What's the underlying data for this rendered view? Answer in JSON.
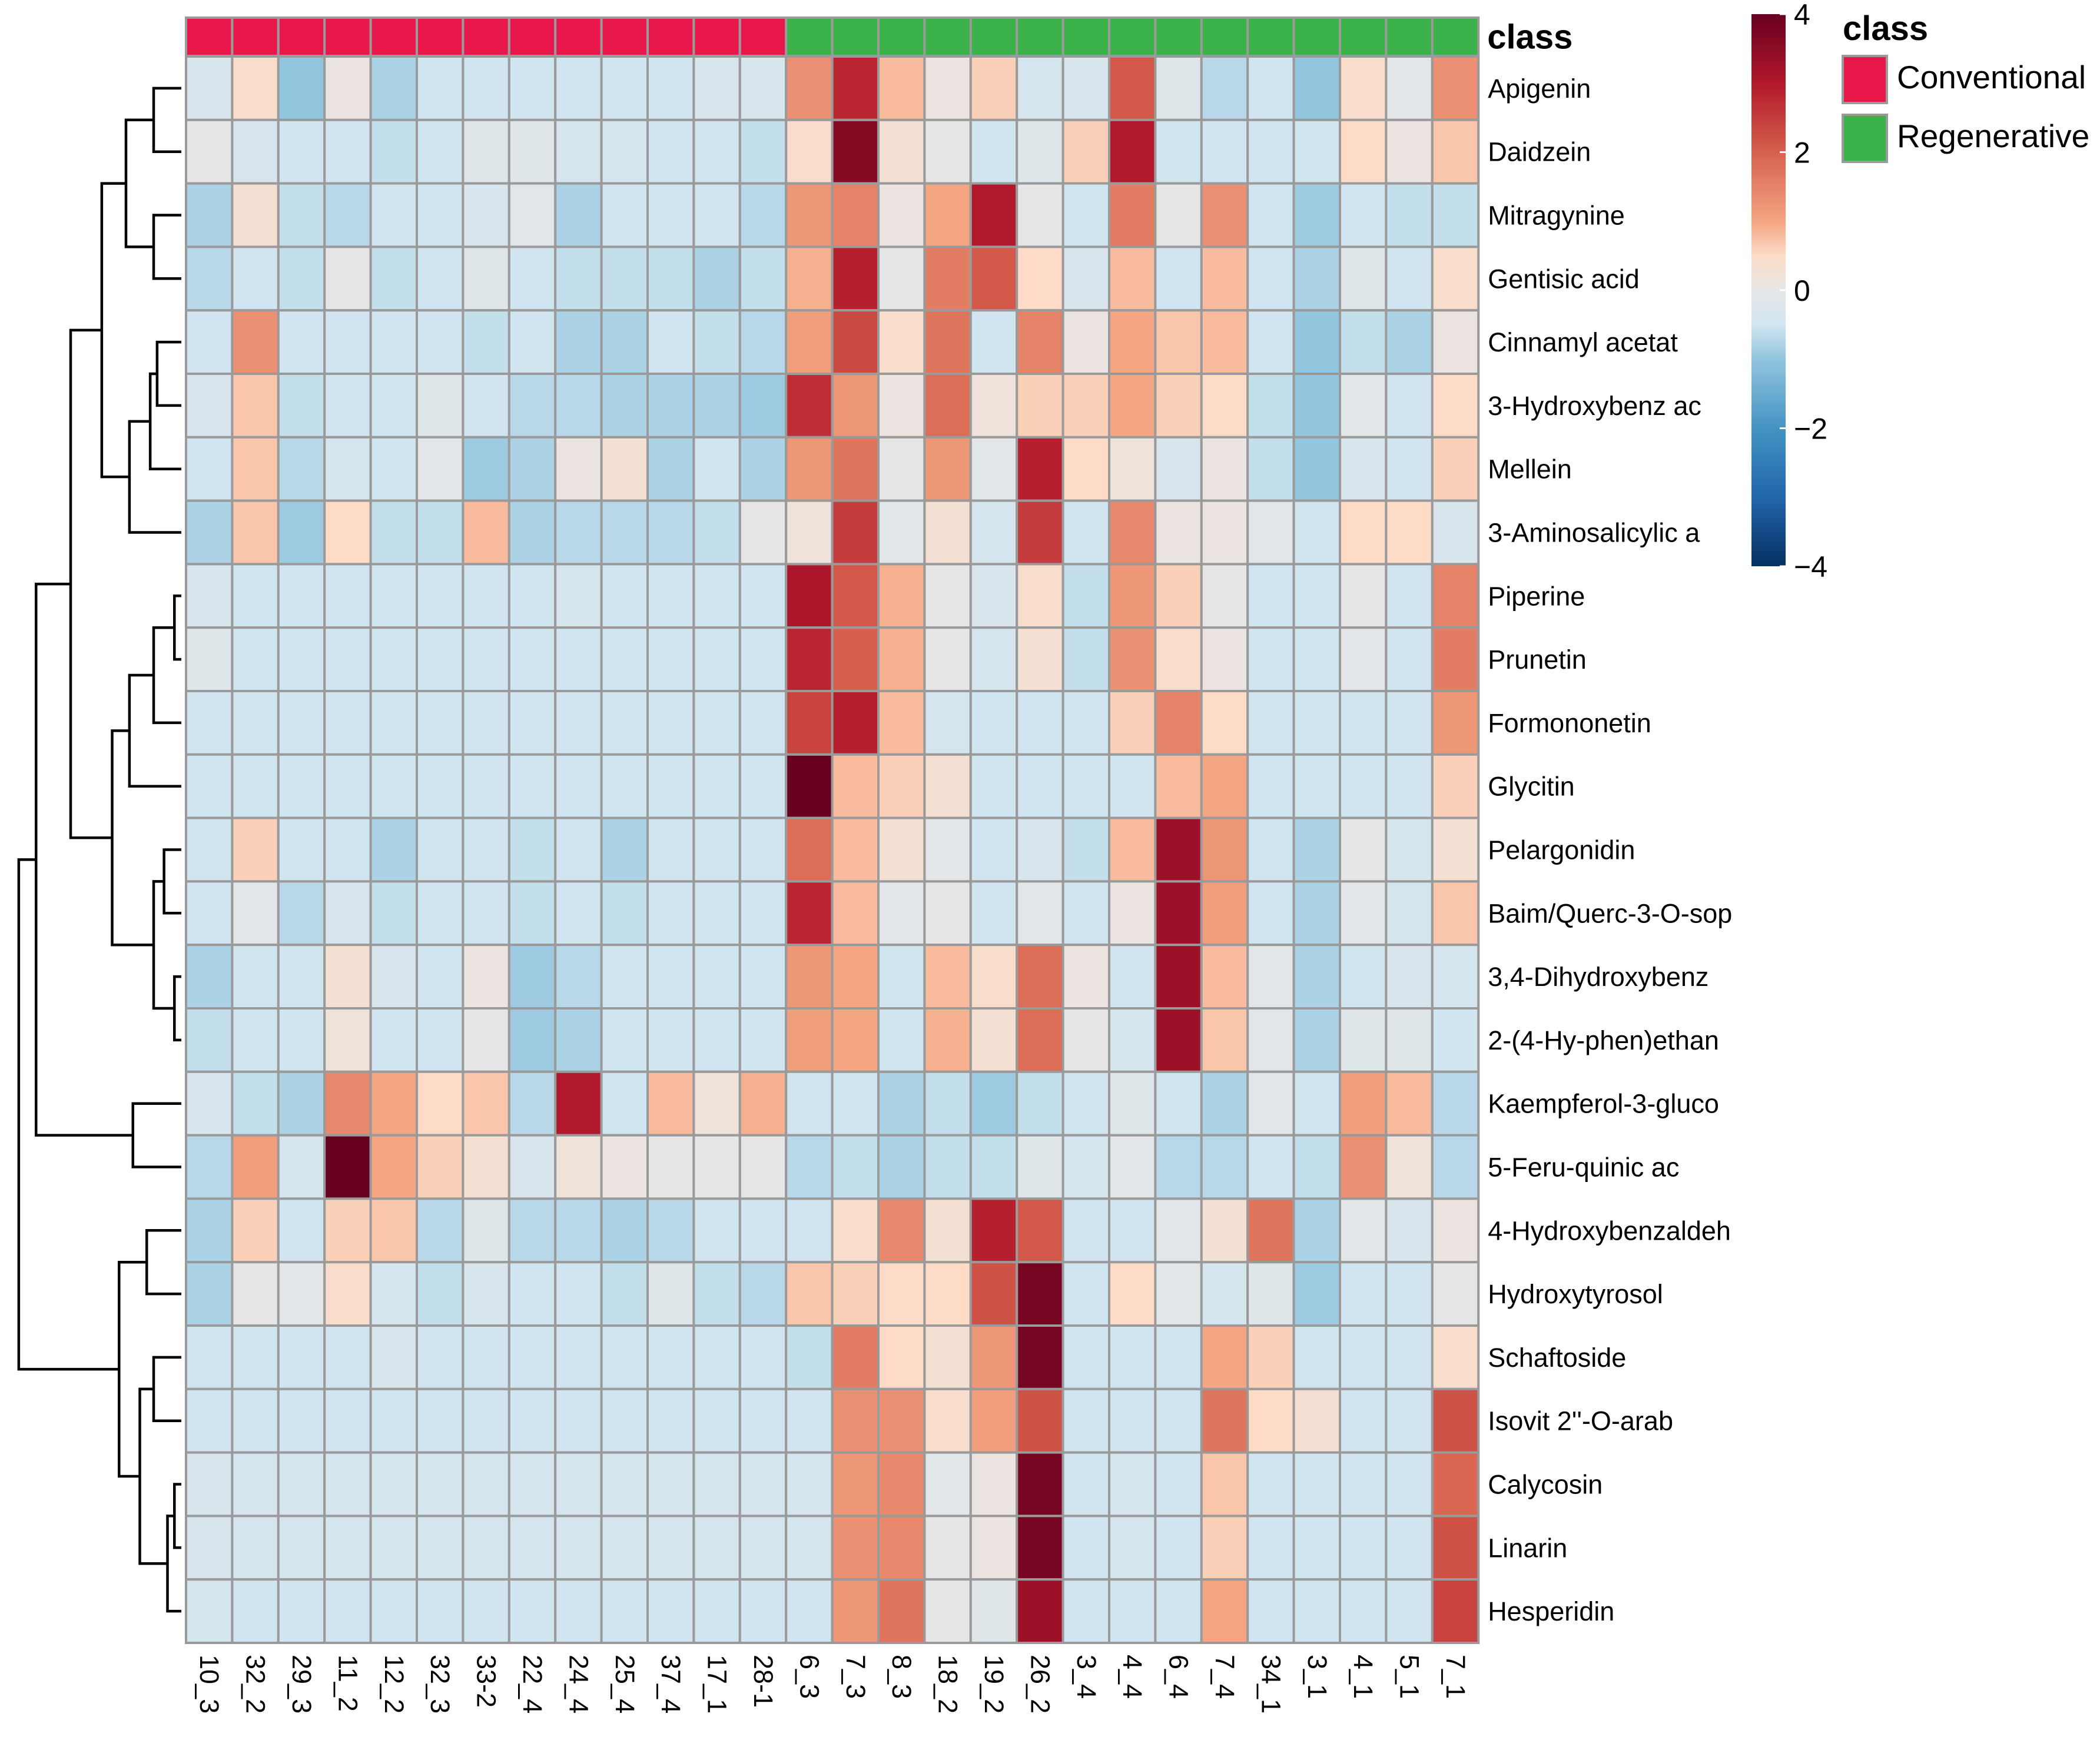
{
  "chart_data": {
    "type": "heatmap",
    "title": "",
    "annotation_title": "class",
    "legend": {
      "title": "class",
      "items": [
        {
          "label": "Conventional",
          "color": "#E8174B"
        },
        {
          "label": "Regenerative",
          "color": "#3BB14A"
        }
      ]
    },
    "color_scale": {
      "min": -4,
      "max": 4,
      "ticks": [
        "4",
        "2",
        "0",
        "−2",
        "−4"
      ],
      "tick_values": [
        4,
        2,
        0,
        -2,
        -4
      ],
      "stops": [
        {
          "value": -4,
          "color": "#053061"
        },
        {
          "value": -3,
          "color": "#2166AC"
        },
        {
          "value": -2,
          "color": "#4393C3"
        },
        {
          "value": -1,
          "color": "#92C5DE"
        },
        {
          "value": -0.5,
          "color": "#D1E5F0"
        },
        {
          "value": 0,
          "color": "#E6E6E6"
        },
        {
          "value": 0.5,
          "color": "#FDDBC7"
        },
        {
          "value": 1,
          "color": "#F4A582"
        },
        {
          "value": 2,
          "color": "#D6604D"
        },
        {
          "value": 3,
          "color": "#B2182B"
        },
        {
          "value": 4,
          "color": "#67001F"
        }
      ]
    },
    "columns": [
      "10_3",
      "32_2",
      "29_3",
      "11_2",
      "12_2",
      "32_3",
      "33-2",
      "22_4",
      "24_4",
      "25_4",
      "37_4",
      "17_1",
      "28-1",
      "6_3",
      "7_3",
      "8_3",
      "18_2",
      "19_2",
      "26_2",
      "3_4",
      "4_4",
      "6_4",
      "7_4",
      "34_1",
      "3_1",
      "4_1",
      "5_1",
      "7_1"
    ],
    "column_classes": [
      "Conventional",
      "Conventional",
      "Conventional",
      "Conventional",
      "Conventional",
      "Conventional",
      "Conventional",
      "Conventional",
      "Conventional",
      "Conventional",
      "Conventional",
      "Conventional",
      "Conventional",
      "Regenerative",
      "Regenerative",
      "Regenerative",
      "Regenerative",
      "Regenerative",
      "Regenerative",
      "Regenerative",
      "Regenerative",
      "Regenerative",
      "Regenerative",
      "Regenerative",
      "Regenerative",
      "Regenerative",
      "Regenerative",
      "Regenerative"
    ],
    "rows": [
      "Apigenin",
      "Daidzein",
      "Mitragynine",
      "Gentisic acid",
      "Cinnamyl acetat",
      "3-Hydroxybenz ac",
      "Mellein",
      "3-Aminosalicylic a",
      "Piperine",
      "Prunetin",
      "Formononetin",
      "Glycitin",
      "Pelargonidin",
      "Baim/Querc-3-O-sop",
      "3,4-Dihydroxybenz",
      "2-(4-Hy-phen)ethan",
      "Kaempferol-3-gluco",
      "5-Feru-quinic ac",
      "4-Hydroxybenzaldeh",
      "Hydroxytyrosol",
      "Schaftoside",
      "Isovit 2''-O-arab",
      "Calycosin",
      "Linarin",
      "Hesperidin"
    ],
    "values": [
      [
        -0.3,
        0.4,
        -1.0,
        0.1,
        -0.8,
        -0.5,
        -0.5,
        -0.5,
        -0.5,
        -0.5,
        -0.5,
        -0.3,
        -0.3,
        1.3,
        2.8,
        0.8,
        0.1,
        0.6,
        -0.4,
        -0.3,
        2.1,
        -0.2,
        -0.7,
        -0.5,
        -1.0,
        0.4,
        -0.1,
        1.3
      ],
      [
        0.0,
        -0.3,
        -0.5,
        -0.5,
        -0.6,
        -0.5,
        -0.2,
        -0.2,
        -0.4,
        -0.4,
        -0.5,
        -0.5,
        -0.6,
        0.4,
        3.6,
        0.3,
        0.0,
        -0.5,
        -0.2,
        0.6,
        3.0,
        -0.5,
        -0.5,
        -0.5,
        -0.5,
        0.5,
        0.1,
        0.7
      ],
      [
        -0.8,
        0.3,
        -0.6,
        -0.7,
        -0.5,
        -0.5,
        -0.3,
        -0.1,
        -0.8,
        -0.5,
        -0.5,
        -0.5,
        -0.7,
        1.2,
        1.5,
        0.1,
        1.0,
        3.0,
        0.0,
        -0.5,
        1.6,
        0.0,
        1.3,
        -0.5,
        -0.9,
        -0.5,
        -0.6,
        -0.6
      ],
      [
        -0.7,
        -0.5,
        -0.6,
        0.0,
        -0.6,
        -0.5,
        -0.2,
        -0.5,
        -0.6,
        -0.6,
        -0.6,
        -0.8,
        -0.6,
        0.9,
        2.9,
        0.0,
        1.6,
        2.1,
        0.5,
        -0.3,
        0.8,
        -0.5,
        0.8,
        -0.5,
        -0.8,
        -0.2,
        -0.5,
        0.4
      ],
      [
        -0.5,
        1.3,
        -0.5,
        -0.5,
        -0.5,
        -0.5,
        -0.6,
        -0.5,
        -0.8,
        -0.8,
        -0.5,
        -0.6,
        -0.7,
        1.1,
        2.3,
        0.4,
        1.7,
        -0.5,
        1.5,
        0.1,
        1.0,
        0.7,
        0.8,
        -0.5,
        -1.0,
        -0.6,
        -0.8,
        0.1
      ],
      [
        -0.3,
        0.7,
        -0.6,
        -0.5,
        -0.5,
        -0.2,
        -0.5,
        -0.7,
        -0.7,
        -0.8,
        -0.8,
        -0.8,
        -0.9,
        2.7,
        1.2,
        0.1,
        1.8,
        0.2,
        0.6,
        0.6,
        1.0,
        0.6,
        0.5,
        -0.6,
        -1.0,
        -0.1,
        -0.5,
        0.5
      ],
      [
        -0.5,
        0.7,
        -0.7,
        -0.4,
        -0.5,
        -0.1,
        -0.9,
        -0.8,
        0.1,
        0.3,
        -0.8,
        -0.5,
        -0.8,
        1.2,
        1.7,
        0.0,
        1.2,
        -0.1,
        2.9,
        0.5,
        0.2,
        -0.3,
        0.1,
        -0.6,
        -1.0,
        -0.3,
        -0.5,
        0.6
      ],
      [
        -0.8,
        0.7,
        -0.9,
        0.5,
        -0.6,
        -0.6,
        0.8,
        -0.8,
        -0.7,
        -0.7,
        -0.7,
        -0.6,
        0.0,
        0.2,
        2.5,
        -0.1,
        0.3,
        -0.4,
        2.5,
        -0.5,
        1.4,
        0.1,
        0.1,
        -0.1,
        -0.5,
        0.5,
        0.5,
        -0.3
      ],
      [
        -0.3,
        -0.5,
        -0.5,
        -0.5,
        -0.5,
        -0.5,
        -0.5,
        -0.5,
        -0.4,
        -0.5,
        -0.5,
        -0.5,
        -0.5,
        3.1,
        2.1,
        0.9,
        0.0,
        -0.3,
        0.4,
        -0.6,
        1.2,
        0.6,
        0.0,
        -0.5,
        -0.5,
        0.0,
        -0.5,
        1.5
      ],
      [
        -0.2,
        -0.5,
        -0.5,
        -0.5,
        -0.5,
        -0.5,
        -0.5,
        -0.5,
        -0.5,
        -0.5,
        -0.5,
        -0.5,
        -0.5,
        2.8,
        2.0,
        0.9,
        0.0,
        -0.4,
        0.3,
        -0.6,
        1.3,
        0.4,
        0.1,
        -0.5,
        -0.5,
        -0.1,
        -0.5,
        1.6
      ],
      [
        -0.5,
        -0.5,
        -0.5,
        -0.5,
        -0.5,
        -0.5,
        -0.5,
        -0.5,
        -0.5,
        -0.5,
        -0.5,
        -0.5,
        -0.5,
        2.4,
        2.9,
        0.8,
        -0.4,
        -0.5,
        -0.5,
        -0.5,
        0.6,
        1.5,
        0.5,
        -0.5,
        -0.5,
        -0.5,
        -0.5,
        1.2
      ],
      [
        -0.5,
        -0.5,
        -0.5,
        -0.5,
        -0.5,
        -0.5,
        -0.5,
        -0.5,
        -0.5,
        -0.5,
        -0.5,
        -0.5,
        -0.5,
        4.0,
        0.8,
        0.6,
        0.3,
        -0.5,
        -0.5,
        -0.5,
        -0.5,
        0.8,
        1.0,
        -0.5,
        -0.5,
        -0.5,
        -0.5,
        0.6
      ],
      [
        -0.5,
        0.6,
        -0.5,
        -0.5,
        -0.8,
        -0.5,
        -0.5,
        -0.6,
        -0.5,
        -0.8,
        -0.5,
        -0.5,
        -0.5,
        1.8,
        0.8,
        0.3,
        -0.1,
        -0.5,
        -0.3,
        -0.6,
        0.8,
        3.3,
        1.2,
        -0.5,
        -0.8,
        0.0,
        -0.4,
        0.3
      ],
      [
        -0.5,
        -0.1,
        -0.7,
        -0.3,
        -0.6,
        -0.5,
        -0.5,
        -0.6,
        -0.5,
        -0.6,
        -0.5,
        -0.5,
        -0.5,
        2.8,
        0.8,
        -0.1,
        0.0,
        -0.5,
        -0.1,
        -0.5,
        0.1,
        3.3,
        1.1,
        -0.5,
        -0.8,
        -0.1,
        -0.4,
        0.7
      ],
      [
        -0.8,
        -0.5,
        -0.5,
        0.3,
        -0.3,
        -0.5,
        0.1,
        -0.9,
        -0.7,
        -0.5,
        -0.5,
        -0.5,
        -0.5,
        1.2,
        1.0,
        -0.5,
        0.8,
        0.4,
        1.8,
        0.1,
        -0.5,
        3.3,
        0.8,
        -0.1,
        -0.8,
        -0.5,
        -0.3,
        -0.4
      ],
      [
        -0.6,
        -0.5,
        -0.5,
        0.2,
        -0.5,
        -0.5,
        0.0,
        -0.9,
        -0.8,
        -0.5,
        -0.5,
        -0.5,
        -0.5,
        1.1,
        1.0,
        -0.5,
        0.9,
        0.3,
        1.8,
        0.0,
        -0.4,
        3.3,
        0.7,
        -0.1,
        -0.8,
        -0.2,
        -0.2,
        -0.5
      ],
      [
        -0.3,
        -0.6,
        -0.8,
        1.4,
        1.0,
        0.5,
        0.7,
        -0.7,
        3.0,
        -0.5,
        0.8,
        0.2,
        0.9,
        -0.5,
        -0.5,
        -0.8,
        -0.6,
        -0.9,
        -0.6,
        -0.5,
        -0.2,
        -0.5,
        -0.8,
        -0.1,
        -0.5,
        1.1,
        0.8,
        -0.7
      ],
      [
        -0.7,
        1.1,
        -0.4,
        4.0,
        1.0,
        0.6,
        0.3,
        -0.3,
        0.2,
        0.1,
        0.0,
        0.0,
        0.0,
        -0.7,
        -0.6,
        -0.8,
        -0.6,
        -0.6,
        -0.2,
        -0.4,
        -0.1,
        -0.7,
        -0.7,
        -0.5,
        -0.6,
        1.3,
        0.2,
        -0.7
      ],
      [
        -0.8,
        0.6,
        -0.5,
        0.6,
        0.7,
        -0.7,
        -0.2,
        -0.7,
        -0.7,
        -0.8,
        -0.7,
        -0.5,
        -0.5,
        -0.5,
        0.4,
        1.4,
        0.3,
        2.9,
        2.1,
        -0.5,
        -0.5,
        -0.1,
        0.3,
        1.7,
        -0.8,
        -0.1,
        -0.3,
        0.1
      ],
      [
        -0.8,
        0.0,
        -0.1,
        0.4,
        -0.4,
        -0.6,
        -0.3,
        -0.5,
        -0.5,
        -0.6,
        -0.2,
        -0.6,
        -0.7,
        0.7,
        0.6,
        0.5,
        0.5,
        2.2,
        3.8,
        -0.5,
        0.5,
        -0.1,
        -0.4,
        -0.2,
        -0.9,
        -0.5,
        -0.5,
        0.0
      ],
      [
        -0.5,
        -0.5,
        -0.5,
        -0.5,
        -0.3,
        -0.5,
        -0.5,
        -0.5,
        -0.5,
        -0.5,
        -0.5,
        -0.5,
        -0.5,
        -0.6,
        1.6,
        0.5,
        0.3,
        1.2,
        3.8,
        -0.5,
        -0.5,
        -0.5,
        1.0,
        0.6,
        -0.5,
        -0.5,
        -0.5,
        0.4
      ],
      [
        -0.5,
        -0.5,
        -0.5,
        -0.5,
        -0.5,
        -0.5,
        -0.5,
        -0.5,
        -0.5,
        -0.5,
        -0.5,
        -0.5,
        -0.5,
        -0.5,
        1.3,
        1.3,
        0.4,
        1.1,
        2.2,
        -0.5,
        -0.5,
        -0.5,
        1.7,
        0.5,
        0.3,
        -0.5,
        -0.5,
        2.2
      ],
      [
        -0.3,
        -0.4,
        -0.4,
        -0.4,
        -0.4,
        -0.4,
        -0.4,
        -0.4,
        -0.4,
        -0.4,
        -0.4,
        -0.4,
        -0.4,
        -0.4,
        1.2,
        1.4,
        -0.1,
        0.1,
        3.8,
        -0.5,
        -0.4,
        -0.5,
        0.7,
        -0.5,
        -0.5,
        -0.5,
        -0.5,
        1.9
      ],
      [
        -0.3,
        -0.4,
        -0.4,
        -0.4,
        -0.4,
        -0.4,
        -0.4,
        -0.4,
        -0.4,
        -0.4,
        -0.4,
        -0.4,
        -0.4,
        -0.4,
        1.3,
        1.4,
        0.0,
        0.1,
        3.8,
        -0.5,
        -0.4,
        -0.5,
        0.6,
        -0.5,
        -0.5,
        -0.5,
        -0.5,
        2.2
      ],
      [
        -0.4,
        -0.5,
        -0.5,
        -0.5,
        -0.5,
        -0.5,
        -0.5,
        -0.5,
        -0.5,
        -0.5,
        -0.5,
        -0.5,
        -0.5,
        -0.5,
        1.2,
        1.7,
        0.0,
        -0.2,
        3.3,
        -0.5,
        -0.5,
        -0.5,
        1.0,
        -0.5,
        -0.5,
        -0.5,
        -0.5,
        2.4
      ]
    ],
    "row_dendrogram": {
      "comment": "Merges in hierarchical order; leaves are row indices (0-based), nodes are referenced as 'n<k>'; h is merge height in distance units.",
      "merges": [
        {
          "id": "n0",
          "a": 0,
          "b": 1,
          "h": 0.4
        },
        {
          "id": "n1",
          "a": 2,
          "b": 3,
          "h": 0.4
        },
        {
          "id": "n2",
          "a": "n0",
          "b": "n1",
          "h": 0.8
        },
        {
          "id": "n3",
          "a": 4,
          "b": 5,
          "h": 0.35
        },
        {
          "id": "n4",
          "a": "n3",
          "b": 6,
          "h": 0.45
        },
        {
          "id": "n5",
          "a": "n4",
          "b": 7,
          "h": 0.75
        },
        {
          "id": "n6",
          "a": "n2",
          "b": "n5",
          "h": 1.15
        },
        {
          "id": "n7",
          "a": 8,
          "b": 9,
          "h": 0.1
        },
        {
          "id": "n8",
          "a": "n7",
          "b": 10,
          "h": 0.4
        },
        {
          "id": "n9",
          "a": "n8",
          "b": 11,
          "h": 0.75
        },
        {
          "id": "n10",
          "a": 12,
          "b": 13,
          "h": 0.25
        },
        {
          "id": "n11",
          "a": 14,
          "b": 15,
          "h": 0.1
        },
        {
          "id": "n12",
          "a": "n10",
          "b": "n11",
          "h": 0.4
        },
        {
          "id": "n13",
          "a": "n9",
          "b": "n12",
          "h": 1.0
        },
        {
          "id": "n14",
          "a": "n6",
          "b": "n13",
          "h": 1.6
        },
        {
          "id": "n15",
          "a": 16,
          "b": 17,
          "h": 0.7
        },
        {
          "id": "n16",
          "a": "n14",
          "b": "n15",
          "h": 2.1
        },
        {
          "id": "n17",
          "a": 18,
          "b": 19,
          "h": 0.5
        },
        {
          "id": "n18",
          "a": 20,
          "b": 21,
          "h": 0.4
        },
        {
          "id": "n19",
          "a": 22,
          "b": 23,
          "h": 0.1
        },
        {
          "id": "n20",
          "a": "n19",
          "b": 24,
          "h": 0.2
        },
        {
          "id": "n21",
          "a": "n18",
          "b": "n20",
          "h": 0.6
        },
        {
          "id": "n22",
          "a": "n17",
          "b": "n21",
          "h": 0.9
        },
        {
          "id": "n23",
          "a": "n16",
          "b": "n22",
          "h": 2.35
        }
      ],
      "max_height": 2.4
    }
  }
}
